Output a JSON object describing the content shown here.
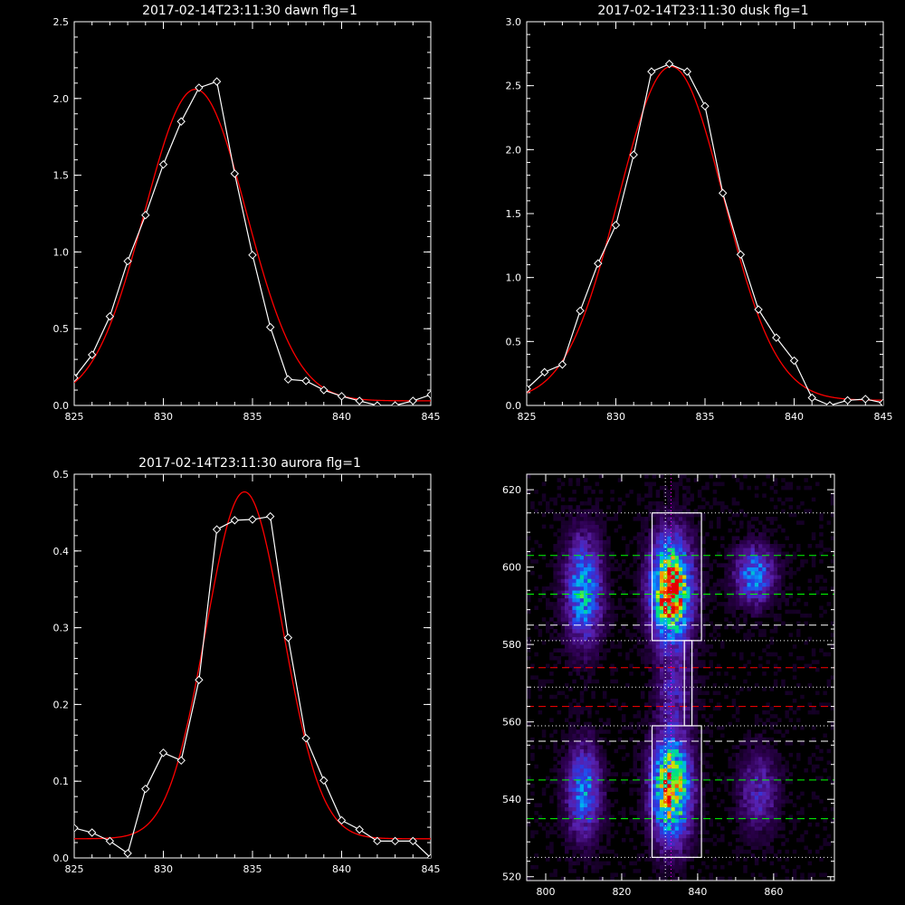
{
  "chart_data": [
    {
      "type": "line",
      "title": "2017-02-14T23:11:30 dawn flg=1",
      "xlim": [
        825,
        845
      ],
      "ylim": [
        0,
        2.5
      ],
      "xticks": [
        "825",
        "830",
        "835",
        "840",
        "845"
      ],
      "yticks": [
        "0.0",
        "0.5",
        "1.0",
        "1.5",
        "2.0",
        "2.5"
      ],
      "series": [
        {
          "style": "data",
          "color": "#ffffff",
          "marker": "diamond",
          "x": [
            825,
            826,
            827,
            828,
            829,
            830,
            831,
            832,
            833,
            834,
            835,
            836,
            837,
            838,
            839,
            840,
            841,
            842,
            843,
            844,
            845
          ],
          "y": [
            0.18,
            0.33,
            0.58,
            0.94,
            1.24,
            1.57,
            1.85,
            2.07,
            2.11,
            1.51,
            0.98,
            0.51,
            0.17,
            0.16,
            0.1,
            0.06,
            0.03,
            0.0,
            0.0,
            0.03,
            0.07
          ]
        },
        {
          "style": "fit",
          "color": "#ff0000",
          "mu": 831.8,
          "sigma": 2.85,
          "amp": 2.03,
          "base": 0.03
        }
      ]
    },
    {
      "type": "line",
      "title": "2017-02-14T23:11:30 dusk flg=1",
      "xlim": [
        825,
        845
      ],
      "ylim": [
        0,
        3.0
      ],
      "xticks": [
        "825",
        "830",
        "835",
        "840",
        "845"
      ],
      "yticks": [
        "0.0",
        "0.5",
        "1.0",
        "1.5",
        "2.0",
        "2.5",
        "3.0"
      ],
      "series": [
        {
          "style": "data",
          "color": "#ffffff",
          "marker": "diamond",
          "x": [
            825,
            826,
            827,
            828,
            829,
            830,
            831,
            832,
            833,
            834,
            835,
            836,
            837,
            838,
            839,
            840,
            841,
            842,
            843,
            844,
            845
          ],
          "y": [
            0.13,
            0.26,
            0.32,
            0.74,
            1.11,
            1.41,
            1.96,
            2.61,
            2.67,
            2.61,
            2.34,
            1.66,
            1.18,
            0.75,
            0.53,
            0.35,
            0.06,
            0.0,
            0.04,
            0.05,
            0.02
          ]
        },
        {
          "style": "fit",
          "color": "#ff0000",
          "mu": 833.1,
          "sigma": 2.95,
          "amp": 2.61,
          "base": 0.04
        }
      ]
    },
    {
      "type": "line",
      "title": "2017-02-14T23:11:30 aurora flg=1",
      "xlim": [
        825,
        845
      ],
      "ylim": [
        0,
        0.5
      ],
      "xticks": [
        "825",
        "830",
        "835",
        "840",
        "845"
      ],
      "yticks": [
        "0.0",
        "0.1",
        "0.2",
        "0.3",
        "0.4",
        "0.5"
      ],
      "series": [
        {
          "style": "data",
          "color": "#ffffff",
          "marker": "diamond",
          "x": [
            825,
            826,
            827,
            828,
            829,
            830,
            831,
            832,
            833,
            834,
            835,
            836,
            837,
            838,
            839,
            840,
            841,
            842,
            843,
            844,
            845
          ],
          "y": [
            0.039,
            0.033,
            0.022,
            0.006,
            0.09,
            0.137,
            0.127,
            0.232,
            0.428,
            0.44,
            0.441,
            0.445,
            0.287,
            0.156,
            0.101,
            0.049,
            0.037,
            0.022,
            0.022,
            0.022,
            0.0
          ]
        },
        {
          "style": "fit",
          "color": "#ff0000",
          "mu": 834.55,
          "sigma": 2.15,
          "amp": 0.452,
          "base": 0.025
        }
      ]
    },
    {
      "type": "heatmap",
      "title": "",
      "xlim": [
        795,
        876
      ],
      "ylim": [
        519,
        624
      ],
      "xticks": [
        "800",
        "820",
        "840",
        "860"
      ],
      "yticks": [
        "520",
        "540",
        "560",
        "580",
        "600",
        "620"
      ],
      "blobs": [
        {
          "x": 810,
          "y": 594,
          "sx": 3.2,
          "sy": 9,
          "amp": 0.55
        },
        {
          "x": 833,
          "y": 594,
          "sx": 3.6,
          "sy": 9,
          "amp": 1.0
        },
        {
          "x": 855,
          "y": 598,
          "sx": 3.5,
          "sy": 5,
          "amp": 0.45
        },
        {
          "x": 810,
          "y": 542,
          "sx": 3.0,
          "sy": 8,
          "amp": 0.45
        },
        {
          "x": 833,
          "y": 543,
          "sx": 3.4,
          "sy": 9,
          "amp": 0.9
        },
        {
          "x": 856,
          "y": 542,
          "sx": 3.5,
          "sy": 7,
          "amp": 0.25
        },
        {
          "x": 834,
          "y": 568,
          "sx": 3.0,
          "sy": 6,
          "amp": 0.22
        }
      ],
      "boxes": [
        {
          "x0": 828,
          "x1": 841,
          "y0": 581,
          "y1": 614
        },
        {
          "x0": 836.5,
          "x1": 838.5,
          "y0": 559,
          "y1": 581
        },
        {
          "x0": 828,
          "x1": 841,
          "y0": 525,
          "y1": 559
        }
      ],
      "hlines": [
        {
          "y": 614,
          "color": "#ffffff",
          "dash": "dotted"
        },
        {
          "y": 603,
          "color": "#00ff00",
          "dash": "dashed"
        },
        {
          "y": 593,
          "color": "#00ff00",
          "dash": "dashed"
        },
        {
          "y": 585,
          "color": "#ffffff",
          "dash": "dashed"
        },
        {
          "y": 581,
          "color": "#ffffff",
          "dash": "dotted"
        },
        {
          "y": 574,
          "color": "#ff0000",
          "dash": "dashed"
        },
        {
          "y": 569,
          "color": "#ffffff",
          "dash": "dotted"
        },
        {
          "y": 564,
          "color": "#ff0000",
          "dash": "dashed"
        },
        {
          "y": 559,
          "color": "#ffffff",
          "dash": "dotted"
        },
        {
          "y": 555,
          "color": "#ffffff",
          "dash": "dashed"
        },
        {
          "y": 545,
          "color": "#00ff00",
          "dash": "dashed"
        },
        {
          "y": 535,
          "color": "#00ff00",
          "dash": "dashed"
        },
        {
          "y": 525,
          "color": "#ffffff",
          "dash": "dotted"
        }
      ],
      "vlines": [
        {
          "x": 831.5,
          "color": "#ffffff",
          "dash": "dotted"
        },
        {
          "x": 833,
          "color": "#ff00ff",
          "dash": "dotted"
        }
      ]
    }
  ]
}
